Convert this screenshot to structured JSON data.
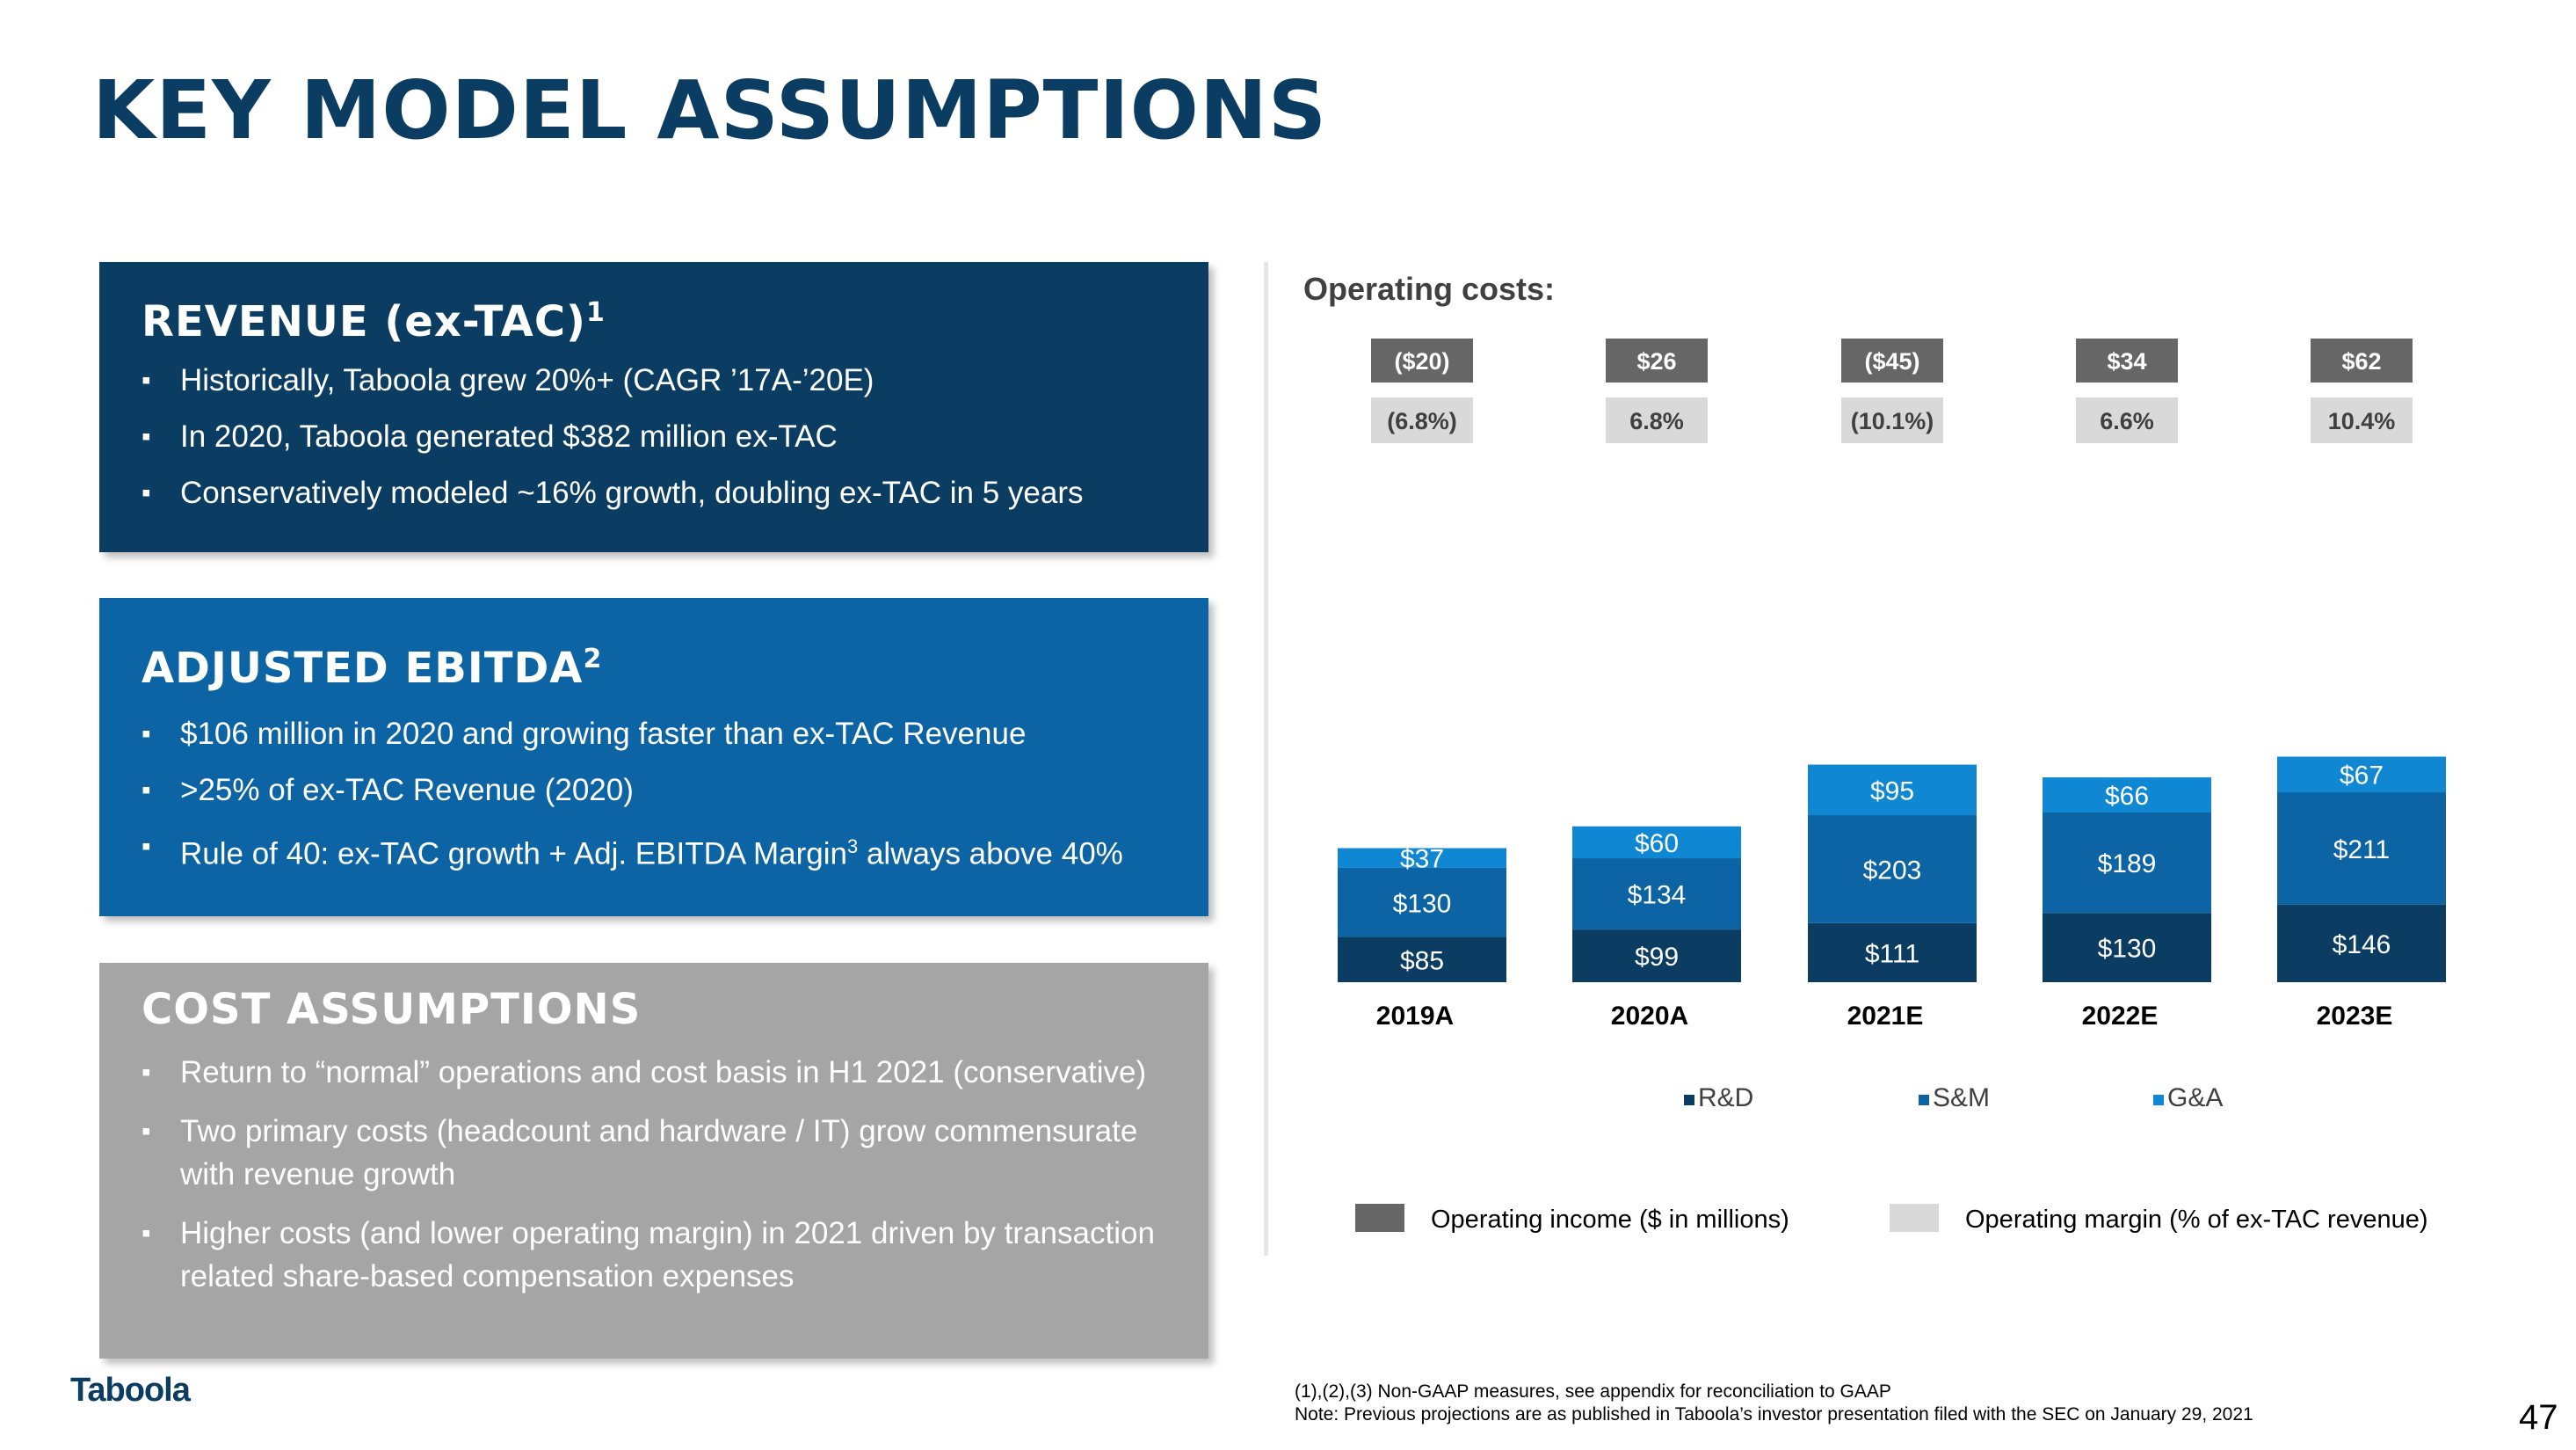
{
  "title": "KEY MODEL ASSUMPTIONS",
  "revenue": {
    "heading": "REVENUE (ex-TAC)",
    "heading_sup": "1",
    "bullets": [
      "Historically, Taboola grew 20%+ (CAGR ’17A-’20E)",
      "In 2020, Taboola generated $382 million ex-TAC",
      "Conservatively modeled ~16% growth, doubling ex-TAC in 5 years"
    ]
  },
  "ebitda": {
    "heading": "ADJUSTED EBITDA",
    "heading_sup": "2",
    "bullets": [
      "$106 million in 2020 and growing faster than ex-TAC Revenue",
      ">25% of ex-TAC Revenue (2020)"
    ],
    "bullet3_pre": "Rule of 40: ex-TAC growth + Adj. EBITDA Margin",
    "bullet3_sup": "3",
    "bullet3_post": " always above 40%"
  },
  "costs": {
    "heading": "COST ASSUMPTIONS",
    "bullets": [
      "Return to “normal” operations and cost basis in H1 2021 (conservative)",
      "Two primary costs (headcount and hardware / IT) grow commensurate with revenue growth",
      "Higher costs (and lower operating margin) in 2021 driven by transaction related share-based compensation expenses"
    ]
  },
  "chart_title": "Operating costs:",
  "chart_data": {
    "type": "bar",
    "stacked": true,
    "categories": [
      "2019A",
      "2020A",
      "2021E",
      "2022E",
      "2023E"
    ],
    "series": [
      {
        "name": "R&D",
        "values": [
          85,
          99,
          111,
          130,
          146
        ],
        "labels": [
          "$85",
          "$99",
          "$111",
          "$130",
          "$146"
        ],
        "color": "#0b3d63"
      },
      {
        "name": "S&M",
        "values": [
          130,
          134,
          203,
          189,
          211
        ],
        "labels": [
          "$130",
          "$134",
          "$203",
          "$189",
          "$211"
        ],
        "color": "#0d64a4"
      },
      {
        "name": "G&A",
        "values": [
          37,
          60,
          95,
          66,
          67
        ],
        "labels": [
          "$37",
          "$60",
          "$95",
          "$66",
          "$67"
        ],
        "color": "#1087d3"
      }
    ],
    "operating_income": [
      "($20)",
      "$26",
      "($45)",
      "$34",
      "$62"
    ],
    "operating_margin": [
      "(6.8%)",
      "6.8%",
      "(10.1%)",
      "6.6%",
      "10.4%"
    ],
    "income_legend": "Operating income ($ in millions)",
    "margin_legend": "Operating margin (% of ex-TAC revenue)",
    "income_color": "#666666",
    "margin_color": "#d9d9d9"
  },
  "footnote_line1": "(1),(2),(3) Non-GAAP measures, see appendix for reconciliation to GAAP",
  "footnote_line2": "Note: Previous projections are as published in Taboola’s investor presentation filed with the SEC on January 29, 2021",
  "page_number": "47",
  "logo_text": "Taboola"
}
